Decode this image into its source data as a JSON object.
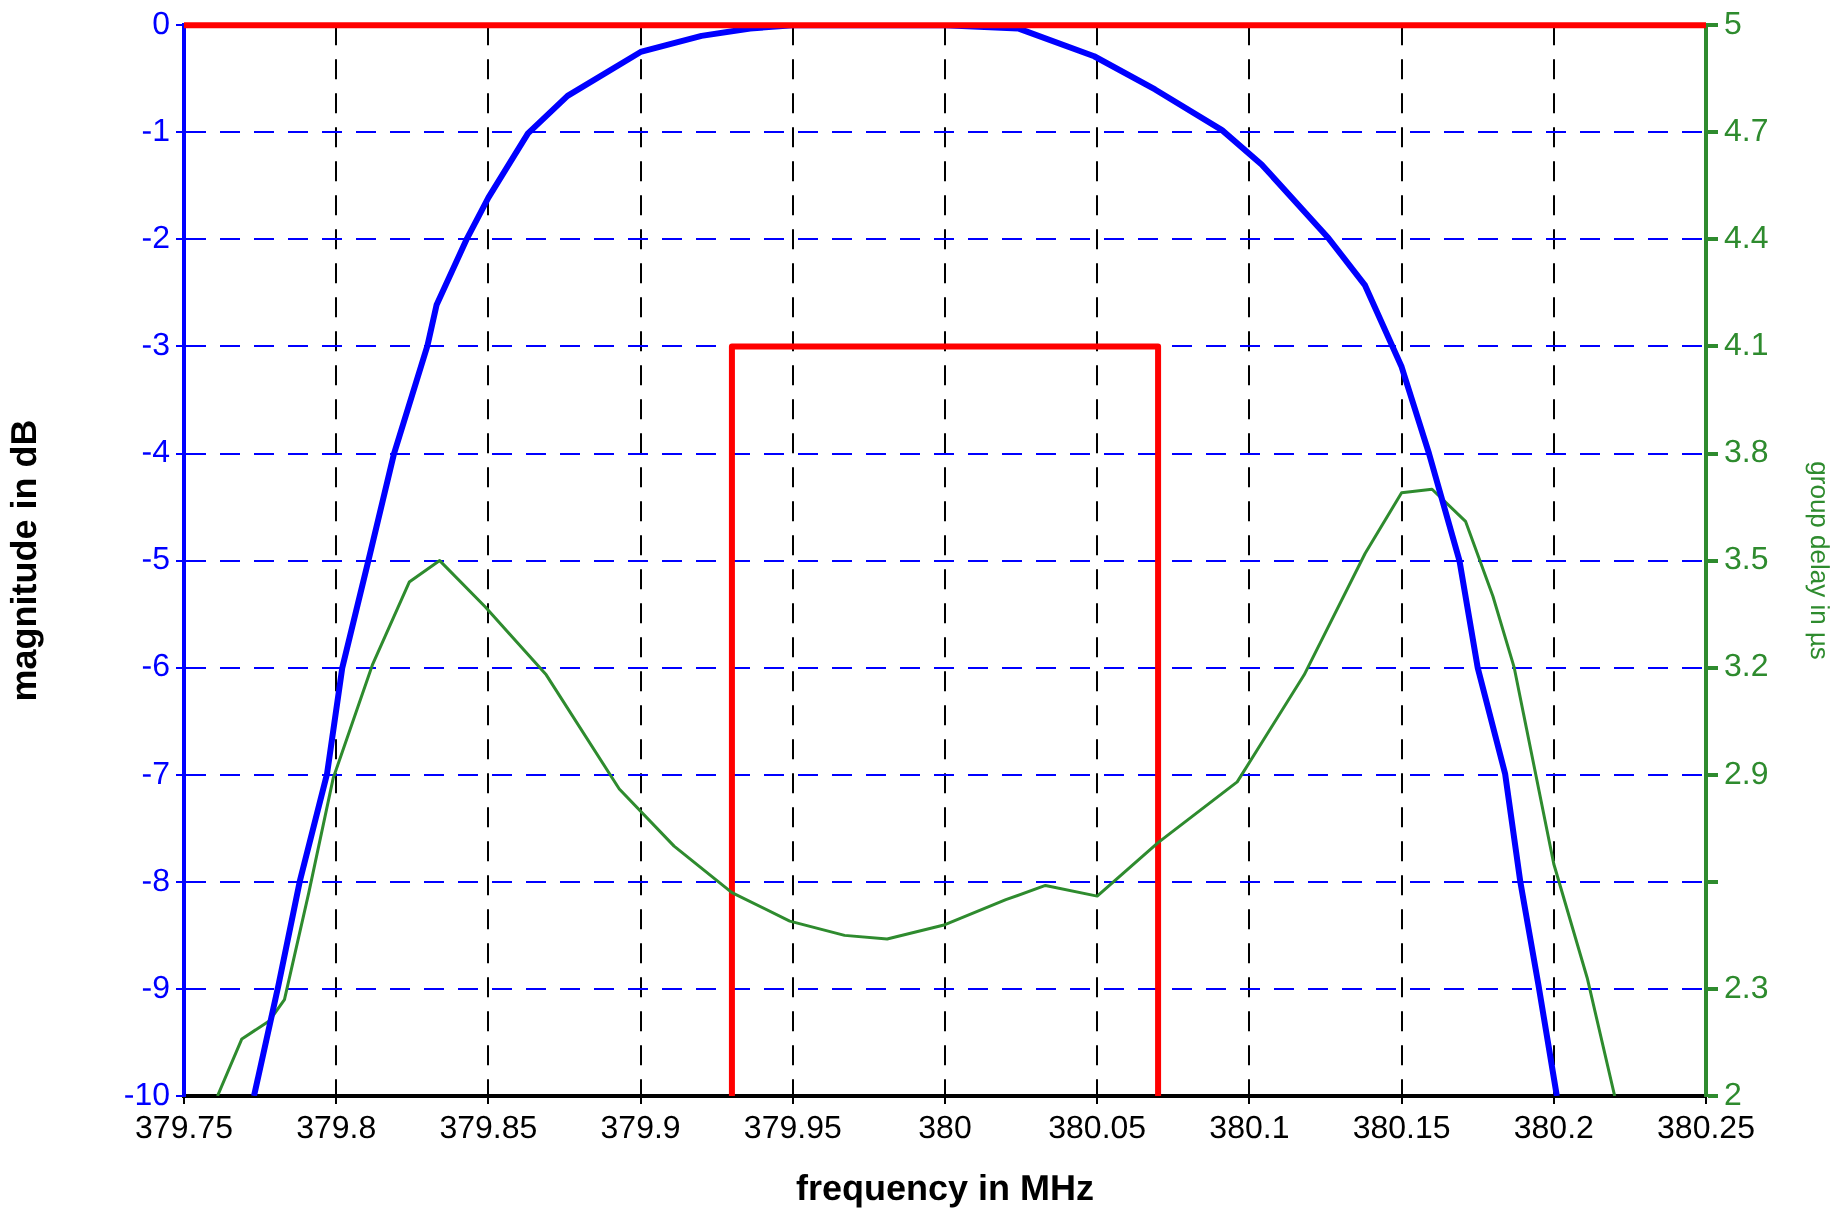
{
  "chart_data": {
    "type": "line",
    "xlabel": "frequency in MHz",
    "ylabel": "magnitude in dB",
    "y2label": "group delay in µs",
    "xlim": [
      379.75,
      380.25
    ],
    "xticks": [
      379.75,
      379.8,
      379.85,
      379.9,
      379.95,
      380,
      380.05,
      380.1,
      380.15,
      380.2,
      380.25
    ],
    "ylim": [
      -10,
      0
    ],
    "yticks": [
      -10,
      -9,
      -8,
      -7,
      -6,
      -5,
      -4,
      -3,
      -2,
      -1,
      0
    ],
    "y2lim": [
      2,
      5
    ],
    "y2ticks": [
      2,
      2.3,
      {
        "value": 2.6,
        "label": null
      },
      2.9,
      3.2,
      3.5,
      3.8,
      4.1,
      4.4,
      4.7,
      5
    ],
    "grid": true,
    "legend": false,
    "marker": "none",
    "line_style": "solid",
    "ref_lines": [
      {
        "axis": "y",
        "value": 0,
        "color": "#ff0000"
      }
    ],
    "series": [
      {
        "color": "#0000ff",
        "x": [
          379.773,
          379.781,
          379.788,
          379.797,
          379.802,
          379.811,
          379.819,
          379.83,
          379.833,
          379.843,
          379.85,
          379.863,
          379.876,
          379.9,
          379.92,
          379.936,
          379.95,
          380.0,
          380.024,
          380.049,
          380.069,
          380.091,
          380.104,
          380.126,
          380.138,
          380.15,
          380.159,
          380.169,
          380.175,
          380.184,
          380.189,
          380.195,
          380.201
        ],
        "values": [
          -10,
          -8.97,
          -8.0,
          -6.99,
          -6.0,
          -4.95,
          -4.0,
          -2.99,
          -2.61,
          -1.99,
          -1.61,
          -1.01,
          -0.66,
          -0.25,
          -0.1,
          -0.03,
          0,
          0,
          -0.03,
          -0.29,
          -0.6,
          -0.98,
          -1.3,
          -1.99,
          -2.43,
          -3.19,
          -4.0,
          -5.0,
          -6.0,
          -6.99,
          -8.0,
          -8.97,
          -10
        ]
      },
      {
        "color": "#2e8b2e",
        "axis": "y2",
        "x": [
          379.761,
          379.769,
          379.778,
          379.783,
          379.791,
          379.799,
          379.812,
          379.824,
          379.834,
          379.849,
          379.869,
          379.893,
          379.911,
          379.93,
          379.949,
          379.967,
          379.981,
          380.0,
          380.02,
          380.033,
          380.05,
          380.07,
          380.096,
          380.118,
          380.138,
          380.15,
          380.16,
          380.171,
          380.18,
          380.187,
          380.2,
          380.211,
          380.22
        ],
        "values": [
          2.0,
          2.16,
          2.21,
          2.27,
          2.57,
          2.89,
          3.21,
          3.44,
          3.5,
          3.37,
          3.18,
          2.86,
          2.7,
          2.57,
          2.49,
          2.45,
          2.44,
          2.48,
          2.55,
          2.59,
          2.56,
          2.71,
          2.88,
          3.18,
          3.52,
          3.69,
          3.7,
          3.61,
          3.4,
          3.2,
          2.65,
          2.33,
          2.0
        ]
      },
      {
        "color": "#ff0000",
        "x": [
          379.93,
          379.93,
          380.07,
          380.07
        ],
        "values": [
          -10,
          -3,
          -3,
          -10
        ]
      }
    ]
  }
}
